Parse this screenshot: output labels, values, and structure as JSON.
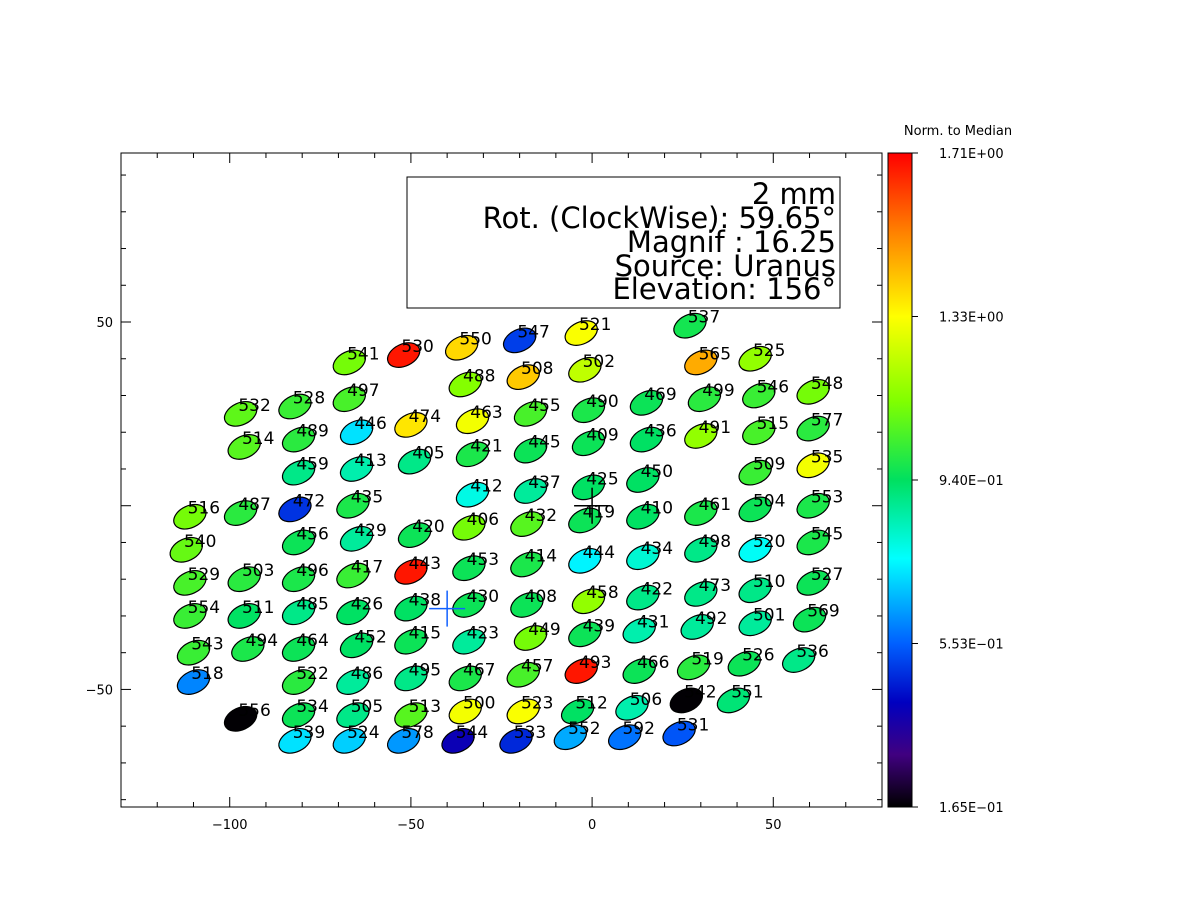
{
  "chart_data": {
    "type": "scatter",
    "xlim": [
      -130,
      80
    ],
    "ylim": [
      -82,
      96
    ],
    "x_ticks": [
      -100,
      -50,
      0,
      50
    ],
    "y_ticks": [
      -50,
      50
    ],
    "grid": false,
    "info_box": {
      "line1": "2 mm",
      "line2": "Rot. (ClockWise):  59.65°",
      "line3": "Magnif : 16.25",
      "line4": "Source: Uranus",
      "line5": "Elevation: 156°"
    },
    "colorbar": {
      "title": "Norm. to Median",
      "tick_labels": [
        "1.71E+00",
        "1.33E+00",
        "9.40E-01",
        "5.53E-01",
        "1.65E-01"
      ],
      "min": 0.165,
      "max": 1.71,
      "colors": [
        "#ff0000",
        "#ff8000",
        "#ffff00",
        "#80ff00",
        "#00e060",
        "#00ffff",
        "#0060ff",
        "#0000c0",
        "#400080",
        "#000000"
      ]
    },
    "markers": [
      {
        "x": -40,
        "y": -28,
        "color": "#1060ff"
      },
      {
        "x": 0,
        "y": 0,
        "color": "#000000"
      }
    ],
    "points": [
      {
        "id": "537",
        "x": 27,
        "y": 49,
        "v": 1.05
      },
      {
        "id": "521",
        "x": -3,
        "y": 47,
        "v": 1.36
      },
      {
        "id": "547",
        "x": -20,
        "y": 45,
        "v": 0.62
      },
      {
        "id": "550",
        "x": -36,
        "y": 43,
        "v": 1.42
      },
      {
        "id": "530",
        "x": -52,
        "y": 41,
        "v": 1.68
      },
      {
        "id": "541",
        "x": -67,
        "y": 39,
        "v": 1.18
      },
      {
        "id": "565",
        "x": 30,
        "y": 39,
        "v": 1.48
      },
      {
        "id": "525",
        "x": 45,
        "y": 40,
        "v": 1.22
      },
      {
        "id": "502",
        "x": -2,
        "y": 37,
        "v": 1.28
      },
      {
        "id": "508",
        "x": -19,
        "y": 35,
        "v": 1.44
      },
      {
        "id": "488",
        "x": -35,
        "y": 33,
        "v": 1.2
      },
      {
        "id": "548",
        "x": 61,
        "y": 31,
        "v": 1.18
      },
      {
        "id": "546",
        "x": 46,
        "y": 30,
        "v": 1.1
      },
      {
        "id": "499",
        "x": 31,
        "y": 29,
        "v": 1.08
      },
      {
        "id": "469",
        "x": 15,
        "y": 28,
        "v": 1.04
      },
      {
        "id": "490",
        "x": -1,
        "y": 26,
        "v": 1.06
      },
      {
        "id": "455",
        "x": -17,
        "y": 25,
        "v": 1.12
      },
      {
        "id": "463",
        "x": -33,
        "y": 23,
        "v": 1.35
      },
      {
        "id": "474",
        "x": -50,
        "y": 22,
        "v": 1.4
      },
      {
        "id": "497",
        "x": -67,
        "y": 29,
        "v": 1.12
      },
      {
        "id": "528",
        "x": -82,
        "y": 27,
        "v": 1.1
      },
      {
        "id": "532",
        "x": -97,
        "y": 25,
        "v": 1.15
      },
      {
        "id": "577",
        "x": 61,
        "y": 21,
        "v": 1.08
      },
      {
        "id": "515",
        "x": 46,
        "y": 20,
        "v": 1.12
      },
      {
        "id": "491",
        "x": 30,
        "y": 19,
        "v": 1.22
      },
      {
        "id": "436",
        "x": 15,
        "y": 18,
        "v": 1.02
      },
      {
        "id": "409",
        "x": -1,
        "y": 17,
        "v": 1.04
      },
      {
        "id": "445",
        "x": -17,
        "y": 15,
        "v": 1.04
      },
      {
        "id": "421",
        "x": -33,
        "y": 14,
        "v": 1.06
      },
      {
        "id": "446",
        "x": -65,
        "y": 20,
        "v": 0.82
      },
      {
        "id": "489",
        "x": -81,
        "y": 18,
        "v": 1.08
      },
      {
        "id": "514",
        "x": -96,
        "y": 16,
        "v": 1.14
      },
      {
        "id": "535",
        "x": 61,
        "y": 11,
        "v": 1.35
      },
      {
        "id": "509",
        "x": 45,
        "y": 9,
        "v": 1.1
      },
      {
        "id": "450",
        "x": 14,
        "y": 7,
        "v": 1.02
      },
      {
        "id": "425",
        "x": -1,
        "y": 5,
        "v": 1.02
      },
      {
        "id": "437",
        "x": -17,
        "y": 4,
        "v": 0.96
      },
      {
        "id": "412",
        "x": -33,
        "y": 3,
        "v": 0.88
      },
      {
        "id": "405",
        "x": -49,
        "y": 12,
        "v": 0.98
      },
      {
        "id": "413",
        "x": -65,
        "y": 10,
        "v": 0.94
      },
      {
        "id": "459",
        "x": -81,
        "y": 9,
        "v": 0.98
      },
      {
        "id": "553",
        "x": 61,
        "y": 0,
        "v": 1.06
      },
      {
        "id": "504",
        "x": 45,
        "y": -1,
        "v": 1.04
      },
      {
        "id": "461",
        "x": 30,
        "y": -2,
        "v": 1.06
      },
      {
        "id": "410",
        "x": 14,
        "y": -3,
        "v": 1.02
      },
      {
        "id": "419",
        "x": -2,
        "y": -4,
        "v": 1.04
      },
      {
        "id": "432",
        "x": -18,
        "y": -5,
        "v": 1.14
      },
      {
        "id": "406",
        "x": -34,
        "y": -6,
        "v": 1.18
      },
      {
        "id": "420",
        "x": -49,
        "y": -8,
        "v": 1.04
      },
      {
        "id": "429",
        "x": -65,
        "y": -9,
        "v": 0.96
      },
      {
        "id": "456",
        "x": -81,
        "y": -10,
        "v": 1.04
      },
      {
        "id": "435",
        "x": -66,
        "y": 0,
        "v": 1.06
      },
      {
        "id": "472",
        "x": -82,
        "y": -1,
        "v": 0.6
      },
      {
        "id": "487",
        "x": -97,
        "y": -2,
        "v": 1.08
      },
      {
        "id": "516",
        "x": -111,
        "y": -3,
        "v": 1.18
      },
      {
        "id": "540",
        "x": -112,
        "y": -12,
        "v": 1.16
      },
      {
        "id": "545",
        "x": 61,
        "y": -10,
        "v": 1.06
      },
      {
        "id": "520",
        "x": 45,
        "y": -12,
        "v": 0.86
      },
      {
        "id": "498",
        "x": 30,
        "y": -12,
        "v": 0.98
      },
      {
        "id": "434",
        "x": 14,
        "y": -14,
        "v": 0.9
      },
      {
        "id": "444",
        "x": -2,
        "y": -15,
        "v": 0.84
      },
      {
        "id": "414",
        "x": -18,
        "y": -16,
        "v": 1.06
      },
      {
        "id": "453",
        "x": -34,
        "y": -17,
        "v": 1.04
      },
      {
        "id": "443",
        "x": -50,
        "y": -18,
        "v": 1.68
      },
      {
        "id": "417",
        "x": -66,
        "y": -19,
        "v": 1.1
      },
      {
        "id": "496",
        "x": -81,
        "y": -20,
        "v": 1.06
      },
      {
        "id": "503",
        "x": -96,
        "y": -20,
        "v": 1.08
      },
      {
        "id": "529",
        "x": -111,
        "y": -21,
        "v": 1.12
      },
      {
        "id": "527",
        "x": 61,
        "y": -21,
        "v": 1.04
      },
      {
        "id": "510",
        "x": 45,
        "y": -23,
        "v": 0.98
      },
      {
        "id": "473",
        "x": 30,
        "y": -24,
        "v": 0.98
      },
      {
        "id": "422",
        "x": 14,
        "y": -25,
        "v": 0.98
      },
      {
        "id": "458",
        "x": -1,
        "y": -26,
        "v": 1.22
      },
      {
        "id": "408",
        "x": -18,
        "y": -27,
        "v": 1.04
      },
      {
        "id": "430",
        "x": -34,
        "y": -27,
        "v": 1.04
      },
      {
        "id": "438",
        "x": -50,
        "y": -28,
        "v": 1.02
      },
      {
        "id": "426",
        "x": -66,
        "y": -29,
        "v": 1.02
      },
      {
        "id": "485",
        "x": -81,
        "y": -29,
        "v": 0.98
      },
      {
        "id": "511",
        "x": -96,
        "y": -30,
        "v": 1.02
      },
      {
        "id": "554",
        "x": -111,
        "y": -30,
        "v": 1.1
      },
      {
        "id": "569",
        "x": 60,
        "y": -31,
        "v": 1.04
      },
      {
        "id": "501",
        "x": 45,
        "y": -32,
        "v": 0.96
      },
      {
        "id": "492",
        "x": 29,
        "y": -33,
        "v": 0.96
      },
      {
        "id": "431",
        "x": 13,
        "y": -34,
        "v": 0.94
      },
      {
        "id": "439",
        "x": -2,
        "y": -35,
        "v": 1.04
      },
      {
        "id": "449",
        "x": -17,
        "y": -36,
        "v": 1.18
      },
      {
        "id": "423",
        "x": -34,
        "y": -37,
        "v": 0.96
      },
      {
        "id": "415",
        "x": -50,
        "y": -37,
        "v": 1.04
      },
      {
        "id": "452",
        "x": -65,
        "y": -38,
        "v": 1.02
      },
      {
        "id": "464",
        "x": -81,
        "y": -39,
        "v": 1.04
      },
      {
        "id": "494",
        "x": -95,
        "y": -39,
        "v": 1.06
      },
      {
        "id": "543",
        "x": -110,
        "y": -40,
        "v": 1.1
      },
      {
        "id": "536",
        "x": 57,
        "y": -42,
        "v": 0.98
      },
      {
        "id": "526",
        "x": 42,
        "y": -43,
        "v": 1.04
      },
      {
        "id": "519",
        "x": 28,
        "y": -44,
        "v": 1.08
      },
      {
        "id": "466",
        "x": 13,
        "y": -45,
        "v": 1.04
      },
      {
        "id": "493",
        "x": -3,
        "y": -45,
        "v": 1.68
      },
      {
        "id": "457",
        "x": -19,
        "y": -46,
        "v": 1.12
      },
      {
        "id": "467",
        "x": -35,
        "y": -47,
        "v": 1.06
      },
      {
        "id": "495",
        "x": -50,
        "y": -47,
        "v": 0.98
      },
      {
        "id": "486",
        "x": -66,
        "y": -48,
        "v": 0.96
      },
      {
        "id": "522",
        "x": -81,
        "y": -48,
        "v": 1.08
      },
      {
        "id": "518",
        "x": -110,
        "y": -48,
        "v": 0.72
      },
      {
        "id": "542",
        "x": 26,
        "y": -53,
        "v": 0.17
      },
      {
        "id": "551",
        "x": 39,
        "y": -53,
        "v": 1.0
      },
      {
        "id": "506",
        "x": 11,
        "y": -55,
        "v": 0.94
      },
      {
        "id": "512",
        "x": -4,
        "y": -56,
        "v": 1.02
      },
      {
        "id": "523",
        "x": -19,
        "y": -56,
        "v": 1.36
      },
      {
        "id": "500",
        "x": -35,
        "y": -56,
        "v": 1.35
      },
      {
        "id": "513",
        "x": -50,
        "y": -57,
        "v": 1.14
      },
      {
        "id": "505",
        "x": -66,
        "y": -57,
        "v": 0.98
      },
      {
        "id": "534",
        "x": -81,
        "y": -57,
        "v": 1.04
      },
      {
        "id": "556",
        "x": -97,
        "y": -58,
        "v": 0.17
      },
      {
        "id": "531",
        "x": 24,
        "y": -62,
        "v": 0.66
      },
      {
        "id": "592",
        "x": 9,
        "y": -63,
        "v": 0.7
      },
      {
        "id": "552",
        "x": -6,
        "y": -63,
        "v": 0.76
      },
      {
        "id": "533",
        "x": -21,
        "y": -64,
        "v": 0.58
      },
      {
        "id": "544",
        "x": -37,
        "y": -64,
        "v": 0.48
      },
      {
        "id": "578",
        "x": -52,
        "y": -64,
        "v": 0.74
      },
      {
        "id": "524",
        "x": -67,
        "y": -64,
        "v": 0.8
      },
      {
        "id": "539",
        "x": -82,
        "y": -64,
        "v": 0.82
      }
    ]
  }
}
